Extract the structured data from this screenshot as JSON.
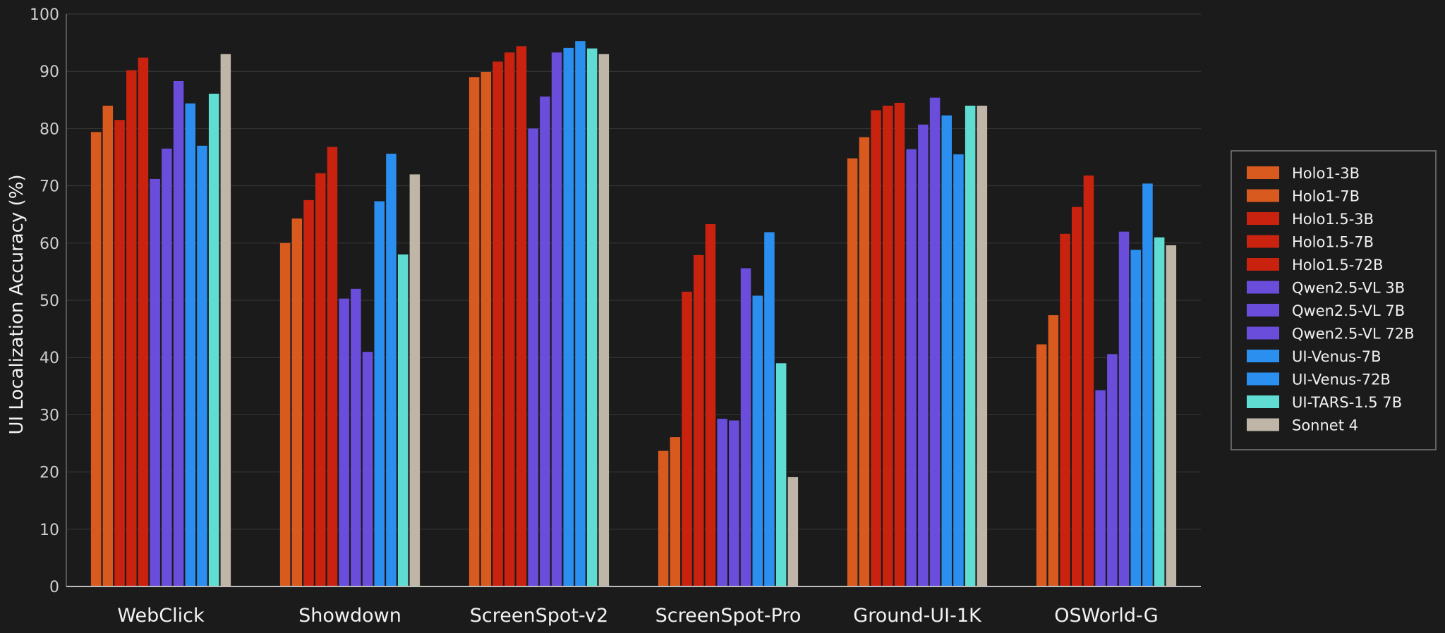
{
  "chart_data": {
    "type": "bar",
    "title": "",
    "xlabel": "",
    "ylabel": "UI Localization Accuracy (%)",
    "ylim": [
      0,
      100
    ],
    "yticks": [
      0,
      10,
      20,
      30,
      40,
      50,
      60,
      70,
      80,
      90,
      100
    ],
    "grid": true,
    "legend_position": "right",
    "categories": [
      "WebClick",
      "Showdown",
      "ScreenSpot-v2",
      "ScreenSpot-Pro",
      "Ground-UI-1K",
      "OSWorld-G"
    ],
    "series": [
      {
        "name": "Holo1-3B",
        "color": "#d95a1e",
        "values": [
          79.4,
          60.0,
          89.0,
          23.7,
          74.8,
          42.3
        ]
      },
      {
        "name": "Holo1-7B",
        "color": "#d95a1e",
        "values": [
          84.0,
          64.3,
          89.9,
          26.1,
          78.5,
          47.4
        ]
      },
      {
        "name": "Holo1.5-3B",
        "color": "#c9230f",
        "values": [
          81.5,
          67.5,
          91.7,
          51.5,
          83.2,
          61.6
        ]
      },
      {
        "name": "Holo1.5-7B",
        "color": "#c9230f",
        "values": [
          90.2,
          72.2,
          93.3,
          57.9,
          84.0,
          66.3
        ]
      },
      {
        "name": "Holo1.5-72B",
        "color": "#c9230f",
        "values": [
          92.4,
          76.8,
          94.4,
          63.3,
          84.5,
          71.8
        ]
      },
      {
        "name": "Qwen2.5-VL 3B",
        "color": "#6a4ddb",
        "values": [
          71.2,
          50.3,
          80.0,
          29.3,
          76.4,
          34.3
        ]
      },
      {
        "name": "Qwen2.5-VL 7B",
        "color": "#6a4ddb",
        "values": [
          76.5,
          52.0,
          85.6,
          29.0,
          80.7,
          40.6
        ]
      },
      {
        "name": "Qwen2.5-VL 72B",
        "color": "#6a4ddb",
        "values": [
          88.3,
          41.0,
          93.3,
          55.6,
          85.4,
          62.0
        ]
      },
      {
        "name": "UI-Venus-7B",
        "color": "#2b8ff0",
        "values": [
          84.4,
          67.3,
          94.1,
          50.8,
          82.3,
          58.8
        ]
      },
      {
        "name": "UI-Venus-72B",
        "color": "#2b8ff0",
        "values": [
          77.0,
          75.6,
          95.3,
          61.9,
          75.5,
          70.4
        ]
      },
      {
        "name": "UI-TARS-1.5 7B",
        "color": "#5fddd3",
        "values": [
          86.1,
          58.0,
          94.0,
          39.0,
          84.0,
          61.0
        ]
      },
      {
        "name": "Sonnet 4",
        "color": "#bfb6a8",
        "values": [
          93.0,
          72.0,
          93.0,
          19.1,
          84.0,
          59.6
        ]
      }
    ]
  }
}
